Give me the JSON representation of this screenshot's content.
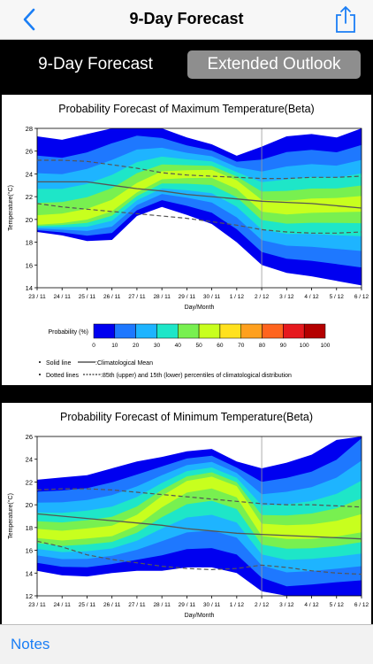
{
  "nav": {
    "title": "9-Day Forecast",
    "back_icon": "chevron-left-icon",
    "share_icon": "share-icon"
  },
  "segments": [
    {
      "label": "9-Day Forecast",
      "selected": true
    },
    {
      "label": "Extended Outlook",
      "selected": false
    }
  ],
  "colors": {
    "accent": "#1a7ef5",
    "prob_colors": [
      "#0000f0",
      "#1e78ff",
      "#1eb4ff",
      "#1ee6c8",
      "#78f050",
      "#c8ff1e",
      "#ffe11e",
      "#ffa01e",
      "#ff641e",
      "#e6191e",
      "#b40000"
    ]
  },
  "chart_data": [
    {
      "type": "area",
      "title": "Probability Forecast of Maximum Temperature(Beta)",
      "xlabel": "Day/Month",
      "ylabel": "Temperature(°C)",
      "ylim": [
        14,
        28
      ],
      "yticks": [
        "14",
        "16",
        "18",
        "20",
        "22",
        "24",
        "26",
        "28"
      ],
      "categories": [
        "23 / 11",
        "24 / 11",
        "25 / 11",
        "26 / 11",
        "27 / 11",
        "28 / 11",
        "29 / 11",
        "30 / 11",
        "1 / 12",
        "2 / 12",
        "3 / 12",
        "4 / 12",
        "5 / 12",
        "6 / 12"
      ],
      "climatological_mean": [
        23.3,
        23.3,
        23.3,
        23.0,
        22.7,
        22.5,
        22.2,
        22.0,
        21.8,
        21.6,
        21.5,
        21.4,
        21.2,
        21.0
      ],
      "p85": [
        25.2,
        25.2,
        25.1,
        24.8,
        24.5,
        24.1,
        23.9,
        23.8,
        23.7,
        23.6,
        23.6,
        23.7,
        23.7,
        23.8
      ],
      "p15": [
        21.4,
        21.1,
        20.9,
        20.7,
        20.5,
        20.3,
        20.1,
        19.8,
        19.5,
        19.1,
        18.9,
        18.8,
        18.8,
        18.9
      ],
      "legend": {
        "label": "Probability (%)",
        "ticks": [
          "0",
          "10",
          "20",
          "30",
          "40",
          "50",
          "60",
          "70",
          "80",
          "90",
          "100"
        ],
        "solid_line": "Solid line",
        "solid_desc": ":Climatological Mean",
        "dotted_line": "Dotted lines",
        "dotted_desc": ":85th (upper) and 15th (lower) percentiles of climatological distribution"
      }
    },
    {
      "type": "area",
      "title": "Probability Forecast of Minimum Temperature(Beta)",
      "xlabel": "Day/Month",
      "ylabel": "Temperature(°C)",
      "ylim": [
        12,
        26
      ],
      "yticks": [
        "12",
        "14",
        "16",
        "18",
        "20",
        "22",
        "24",
        "26"
      ],
      "categories": [
        "23 / 11",
        "24 / 11",
        "25 / 11",
        "26 / 11",
        "27 / 11",
        "28 / 11",
        "29 / 11",
        "30 / 11",
        "1 / 12",
        "2 / 12",
        "3 / 12",
        "4 / 12",
        "5 / 12",
        "6 / 12"
      ],
      "climatological_mean": [
        19.2,
        19.0,
        18.8,
        18.6,
        18.4,
        18.2,
        17.9,
        17.7,
        17.5,
        17.4,
        17.3,
        17.2,
        17.1,
        17.0
      ],
      "p85": [
        21.3,
        21.4,
        21.4,
        21.3,
        21.1,
        20.9,
        20.7,
        20.5,
        20.3,
        20.1,
        20.0,
        20.0,
        19.9,
        19.8
      ],
      "p15": [
        16.8,
        16.3,
        15.6,
        15.2,
        14.9,
        14.6,
        14.4,
        14.3,
        14.4,
        14.7,
        14.5,
        14.2,
        14.0,
        13.9
      ]
    }
  ],
  "footer": {
    "notes": "Notes"
  }
}
